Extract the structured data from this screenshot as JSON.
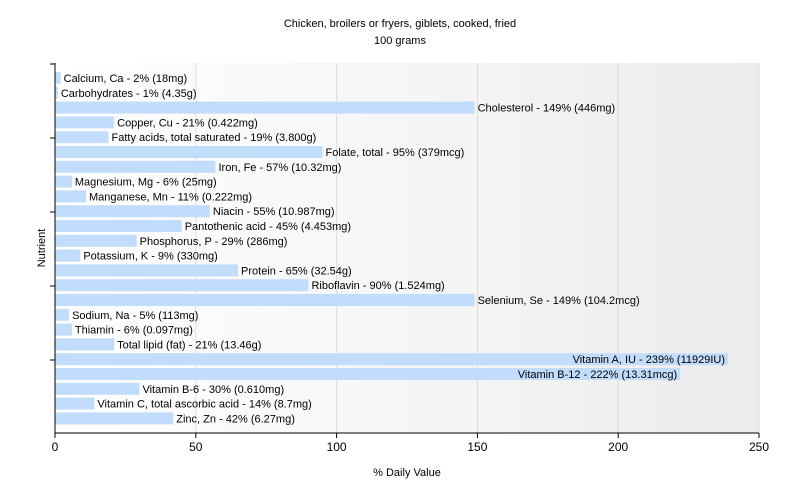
{
  "chart_data": {
    "type": "bar",
    "orientation": "horizontal",
    "title": "Chicken, broilers or fryers, giblets, cooked, fried",
    "subtitle": "100 grams",
    "xlabel": "% Daily Value",
    "ylabel": "Nutrient",
    "xlim": [
      0,
      250
    ],
    "xticks": [
      0,
      50,
      100,
      150,
      200,
      250
    ],
    "grid": true,
    "bar_color": "#c2dcfb",
    "categories": [
      "Calcium, Ca",
      "Carbohydrates",
      "Cholesterol",
      "Copper, Cu",
      "Fatty acids, total saturated",
      "Folate, total",
      "Iron, Fe",
      "Magnesium, Mg",
      "Manganese, Mn",
      "Niacin",
      "Pantothenic acid",
      "Phosphorus, P",
      "Potassium, K",
      "Protein",
      "Riboflavin",
      "Selenium, Se",
      "Sodium, Na",
      "Thiamin",
      "Total lipid (fat)",
      "Vitamin A, IU",
      "Vitamin B-12",
      "Vitamin B-6",
      "Vitamin C, total ascorbic acid",
      "Zinc, Zn"
    ],
    "values": [
      2,
      1,
      149,
      21,
      19,
      95,
      57,
      6,
      11,
      55,
      45,
      29,
      9,
      65,
      90,
      149,
      5,
      6,
      21,
      239,
      222,
      30,
      14,
      42
    ],
    "labels": [
      "Calcium, Ca - 2% (18mg)",
      "Carbohydrates - 1% (4.35g)",
      "Cholesterol - 149% (446mg)",
      "Copper, Cu - 21% (0.422mg)",
      "Fatty acids, total saturated - 19% (3.800g)",
      "Folate, total - 95% (379mcg)",
      "Iron, Fe - 57% (10.32mg)",
      "Magnesium, Mg - 6% (25mg)",
      "Manganese, Mn - 11% (0.222mg)",
      "Niacin - 55% (10.987mg)",
      "Pantothenic acid - 45% (4.453mg)",
      "Phosphorus, P - 29% (286mg)",
      "Potassium, K - 9% (330mg)",
      "Protein - 65% (32.54g)",
      "Riboflavin - 90% (1.524mg)",
      "Selenium, Se - 149% (104.2mcg)",
      "Sodium, Na - 5% (113mg)",
      "Thiamin - 6% (0.097mg)",
      "Total lipid (fat) - 21% (13.46g)",
      "Vitamin A, IU - 239% (11929IU)",
      "Vitamin B-12 - 222% (13.31mcg)",
      "Vitamin B-6 - 30% (0.610mg)",
      "Vitamin C, total ascorbic acid - 14% (8.7mg)",
      "Zinc, Zn - 42% (6.27mg)"
    ]
  }
}
